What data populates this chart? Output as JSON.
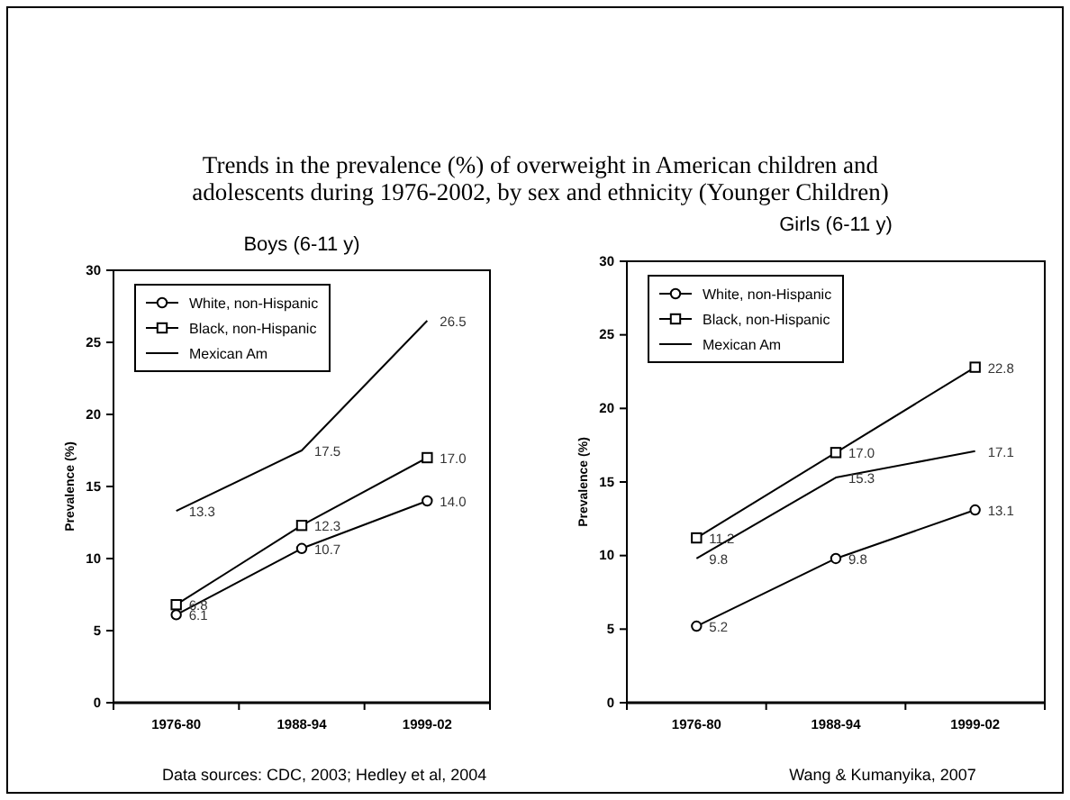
{
  "chart_data": [
    {
      "type": "line",
      "title": "Trends in the prevalence (%) of overweight in American children and adolescents during 1976-2002, by sex and ethnicity (Younger Children)",
      "subtitle": "Boys (6-11 y)",
      "ylabel": "Prevalence (%)",
      "categories": [
        "1976-80",
        "1988-94",
        "1999-02"
      ],
      "ylim": [
        0,
        30
      ],
      "yticks": [
        0,
        5,
        10,
        15,
        20,
        25,
        30
      ],
      "legend": "top left",
      "grid": false,
      "annotations": [
        "Data sources: CDC, 2003; Hedley et al, 2004"
      ],
      "series": [
        {
          "name": "White, non-Hispanic",
          "color": "#000000",
          "marker": "circle",
          "values": [
            6.1,
            10.7,
            14.0
          ],
          "value_labels": [
            "6.1",
            "10.7",
            "14.0"
          ]
        },
        {
          "name": "Black, non-Hispanic",
          "color": "#000000",
          "marker": "square",
          "values": [
            6.8,
            12.3,
            17.0
          ],
          "value_labels": [
            "6.8",
            "12.3",
            "17.0"
          ]
        },
        {
          "name": "Mexican Am",
          "color": "#000000",
          "marker": "none",
          "values": [
            13.3,
            17.5,
            26.5
          ],
          "value_labels": [
            "13.3",
            "17.5",
            "26.5"
          ]
        }
      ]
    },
    {
      "type": "line",
      "subtitle": "Girls (6-11 y)",
      "ylabel": "Prevalence (%)",
      "categories": [
        "1976-80",
        "1988-94",
        "1999-02"
      ],
      "ylim": [
        0,
        30
      ],
      "yticks": [
        0,
        5,
        10,
        15,
        20,
        25,
        30
      ],
      "legend": "top left",
      "grid": false,
      "annotations": [
        "Wang & Kumanyika, 2007"
      ],
      "series": [
        {
          "name": "White, non-Hispanic",
          "color": "#000000",
          "marker": "circle",
          "values": [
            5.2,
            9.8,
            13.1
          ],
          "value_labels": [
            "5.2",
            "9.8",
            "13.1"
          ]
        },
        {
          "name": "Black, non-Hispanic",
          "color": "#000000",
          "marker": "square",
          "values": [
            11.2,
            17.0,
            22.8
          ],
          "value_labels": [
            "11.2",
            "17.0",
            "22.8"
          ]
        },
        {
          "name": "Mexican Am",
          "color": "#000000",
          "marker": "none",
          "values": [
            9.8,
            15.3,
            17.1
          ],
          "value_labels": [
            "9.8",
            "15.3",
            "17.1"
          ]
        }
      ]
    }
  ]
}
